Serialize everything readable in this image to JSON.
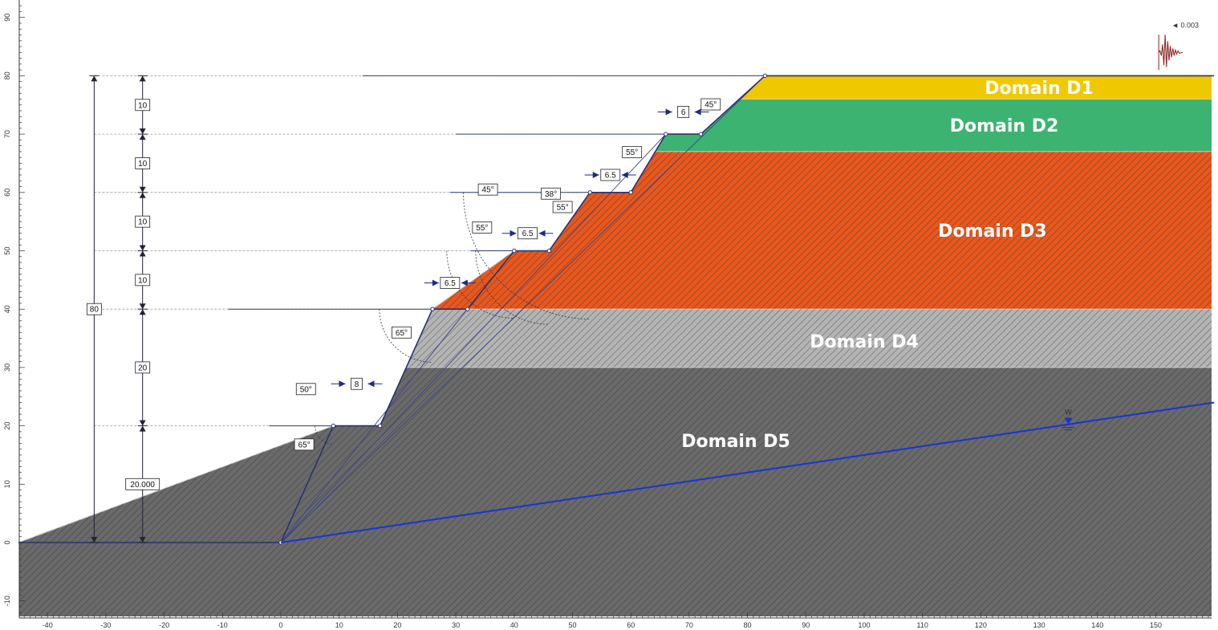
{
  "axes": {
    "x_ticks": [
      "-40",
      "-30",
      "-20",
      "-10",
      "0",
      "10",
      "20",
      "30",
      "40",
      "50",
      "60",
      "70",
      "80",
      "90",
      "100",
      "110",
      "120",
      "130",
      "140",
      "150"
    ],
    "y_ticks": [
      "-10",
      "0",
      "10",
      "20",
      "30",
      "40",
      "50",
      "60",
      "70",
      "80",
      "90"
    ],
    "x_range": [
      -45,
      160
    ],
    "y_range": [
      -13,
      93
    ]
  },
  "domains": [
    {
      "id": "D1",
      "label": "Domain D1",
      "color": "#f0c800",
      "y_top": 80,
      "y_bottom": 76,
      "hatched": false
    },
    {
      "id": "D2",
      "label": "Domain D2",
      "color": "#3cb371",
      "y_top": 76,
      "y_bottom": 67,
      "hatched": false
    },
    {
      "id": "D3",
      "label": "Domain D3",
      "color": "#e8581e",
      "y_top": 67,
      "y_bottom": 40,
      "hatched": true
    },
    {
      "id": "D4",
      "label": "Domain D4",
      "color": "#b4b4b4",
      "y_top": 40,
      "y_bottom": 30,
      "hatched": true
    },
    {
      "id": "D5",
      "label": "Domain D5",
      "color": "#6a6a6a",
      "y_top": 30,
      "y_bottom": -13,
      "hatched": true
    }
  ],
  "profile": [
    [
      -45,
      0
    ],
    [
      0,
      0
    ],
    [
      9,
      20
    ],
    [
      17,
      20
    ],
    [
      26,
      40
    ],
    [
      32,
      40
    ],
    [
      40,
      50
    ],
    [
      46,
      50
    ],
    [
      53,
      60
    ],
    [
      60,
      60
    ],
    [
      66,
      70
    ],
    [
      72,
      70
    ],
    [
      83,
      80
    ],
    [
      160,
      80
    ]
  ],
  "water_table": [
    [
      0,
      0
    ],
    [
      160,
      24
    ]
  ],
  "water_marker": {
    "x": 135,
    "y": 20,
    "label": "W"
  },
  "seismic": {
    "x": 150.5,
    "y": 84,
    "label": "◄ 0.003"
  },
  "dimensions_left": {
    "overall": {
      "x": -32,
      "from": 0,
      "to": 80,
      "label": "80"
    },
    "segments": [
      {
        "from": 70,
        "to": 80,
        "label": "10"
      },
      {
        "from": 60,
        "to": 70,
        "label": "10"
      },
      {
        "from": 50,
        "to": 60,
        "label": "10"
      },
      {
        "from": 40,
        "to": 50,
        "label": "10"
      },
      {
        "from": 20,
        "to": 40,
        "label": "20"
      },
      {
        "from": 0,
        "to": 20,
        "label": "20.000"
      }
    ]
  },
  "angle_labels": [
    {
      "x": 4,
      "y": 16.8,
      "label": "65°"
    },
    {
      "x": 4.3,
      "y": 26.3,
      "label": "50°"
    },
    {
      "x": 20.7,
      "y": 36,
      "label": "65°"
    },
    {
      "x": 34.5,
      "y": 54,
      "label": "55°"
    },
    {
      "x": 35.5,
      "y": 60.5,
      "label": "45°"
    },
    {
      "x": 46.3,
      "y": 59.8,
      "label": "38°"
    },
    {
      "x": 48.3,
      "y": 57.5,
      "label": "55°"
    },
    {
      "x": 60.2,
      "y": 66.9,
      "label": "55°"
    },
    {
      "x": 73.7,
      "y": 75.1,
      "label": "45°"
    }
  ],
  "bench_labels": [
    {
      "x": 13,
      "y": 27.2,
      "label": "8"
    },
    {
      "x": 29,
      "y": 44.5,
      "label": "6.5"
    },
    {
      "x": 42.3,
      "y": 53,
      "label": "6.5"
    },
    {
      "x": 56.5,
      "y": 63,
      "label": "6.5"
    },
    {
      "x": 69,
      "y": 73.8,
      "label": "6"
    }
  ]
}
